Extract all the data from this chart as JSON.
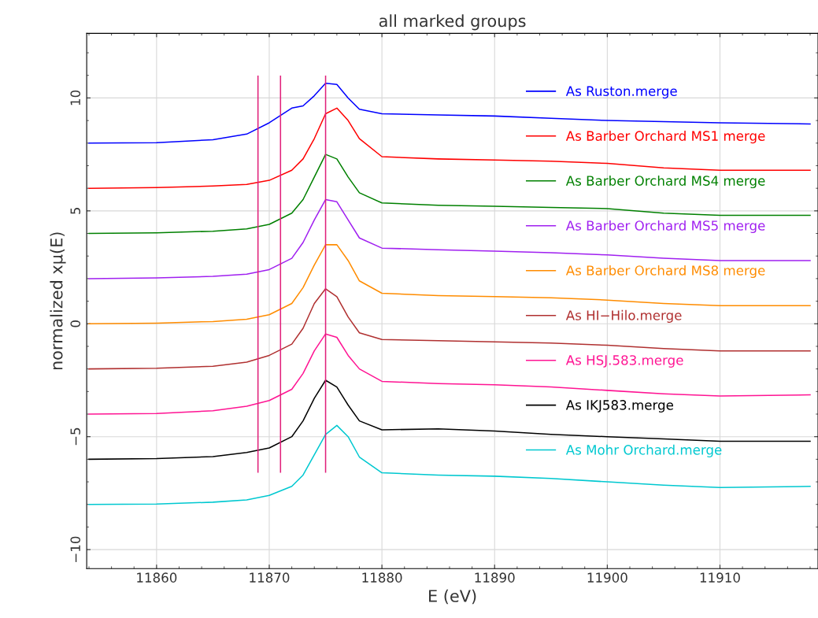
{
  "chart_data": {
    "type": "line",
    "title": "all marked groups",
    "xlabel": "E (eV)",
    "ylabel": "normalized xμ(E)",
    "x": [
      11854,
      11860,
      11865,
      11868,
      11870,
      11872,
      11873,
      11874,
      11875,
      11876,
      11877,
      11878,
      11880,
      11885,
      11890,
      11895,
      11900,
      11905,
      11910,
      11918
    ],
    "series": [
      {
        "name": "As Ruston.merge",
        "color": "#0000ff",
        "values": [
          8.0,
          8.02,
          8.15,
          8.4,
          8.9,
          9.55,
          9.65,
          10.1,
          10.65,
          10.6,
          10.0,
          9.5,
          9.3,
          9.25,
          9.2,
          9.1,
          9.0,
          8.95,
          8.9,
          8.85
        ]
      },
      {
        "name": "As Barber Orchard MS1 merge",
        "color": "#ff0000",
        "values": [
          6.0,
          6.03,
          6.1,
          6.17,
          6.35,
          6.8,
          7.3,
          8.2,
          9.3,
          9.55,
          9.0,
          8.2,
          7.4,
          7.3,
          7.25,
          7.2,
          7.1,
          6.9,
          6.8,
          6.8
        ]
      },
      {
        "name": "As Barber Orchard MS4 merge",
        "color": "#008000",
        "values": [
          4.0,
          4.03,
          4.1,
          4.2,
          4.4,
          4.9,
          5.5,
          6.5,
          7.5,
          7.3,
          6.5,
          5.8,
          5.35,
          5.25,
          5.2,
          5.15,
          5.1,
          4.9,
          4.8,
          4.8
        ]
      },
      {
        "name": "As Barber Orchard MS5 merge",
        "color": "#a020f0",
        "values": [
          2.0,
          2.03,
          2.1,
          2.2,
          2.4,
          2.9,
          3.6,
          4.6,
          5.5,
          5.4,
          4.6,
          3.8,
          3.35,
          3.28,
          3.22,
          3.15,
          3.05,
          2.9,
          2.8,
          2.8
        ]
      },
      {
        "name": "As Barber Orchard MS8 merge",
        "color": "#ff8c00",
        "values": [
          0.0,
          0.03,
          0.1,
          0.2,
          0.4,
          0.9,
          1.6,
          2.6,
          3.5,
          3.5,
          2.8,
          1.9,
          1.35,
          1.25,
          1.2,
          1.15,
          1.05,
          0.9,
          0.8,
          0.8
        ]
      },
      {
        "name": "As HI−Hilo.merge",
        "color": "#b03030",
        "values": [
          -2.0,
          -1.97,
          -1.88,
          -1.7,
          -1.4,
          -0.9,
          -0.2,
          0.9,
          1.55,
          1.2,
          0.3,
          -0.4,
          -0.7,
          -0.75,
          -0.8,
          -0.85,
          -0.95,
          -1.1,
          -1.2,
          -1.2
        ]
      },
      {
        "name": "As HSJ.583.merge",
        "color": "#ff1493",
        "values": [
          -4.0,
          -3.97,
          -3.85,
          -3.65,
          -3.4,
          -2.9,
          -2.2,
          -1.2,
          -0.45,
          -0.6,
          -1.4,
          -2.0,
          -2.55,
          -2.65,
          -2.7,
          -2.8,
          -2.95,
          -3.1,
          -3.2,
          -3.15
        ]
      },
      {
        "name": "As IKJ583.merge",
        "color": "#000000",
        "values": [
          -6.0,
          -5.97,
          -5.88,
          -5.7,
          -5.5,
          -5.0,
          -4.3,
          -3.3,
          -2.5,
          -2.8,
          -3.6,
          -4.3,
          -4.7,
          -4.65,
          -4.75,
          -4.9,
          -5.0,
          -5.1,
          -5.2,
          -5.2
        ]
      },
      {
        "name": "As Mohr Orchard.merge",
        "color": "#00c8d0",
        "values": [
          -8.0,
          -7.98,
          -7.9,
          -7.8,
          -7.6,
          -7.2,
          -6.7,
          -5.8,
          -4.9,
          -4.5,
          -5.0,
          -5.9,
          -6.6,
          -6.7,
          -6.75,
          -6.85,
          -7.0,
          -7.15,
          -7.25,
          -7.2
        ]
      }
    ],
    "ref_lines": [
      {
        "axis": "x",
        "value": 11869,
        "color": "#e0207a"
      },
      {
        "axis": "x",
        "value": 11871,
        "color": "#e0207a"
      },
      {
        "axis": "x",
        "value": 11875,
        "color": "#e0207a"
      }
    ],
    "xlim": [
      11853.8,
      11918.7
    ],
    "ylim": [
      -10.84,
      12.86
    ],
    "xticks": [
      11860,
      11870,
      11880,
      11890,
      11900,
      11910
    ],
    "yticks": [
      -10,
      -5,
      0,
      5,
      10
    ],
    "grid": true,
    "legend": "top right"
  }
}
